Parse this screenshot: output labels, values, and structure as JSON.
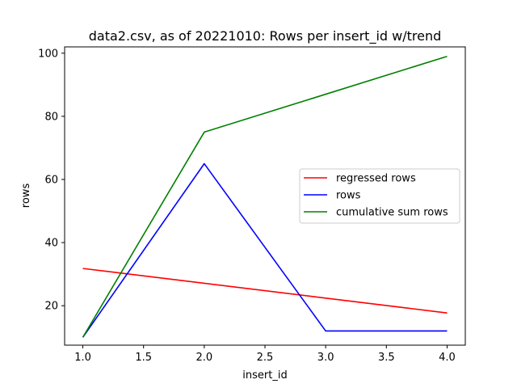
{
  "chart_data": {
    "type": "line",
    "title": "data2.csv, as of 20221010: Rows per insert_id w/trend",
    "xlabel": "insert_id",
    "ylabel": "rows",
    "x": [
      1.0,
      2.0,
      3.0,
      4.0
    ],
    "xlim": [
      0.85,
      4.15
    ],
    "ylim": [
      7.5,
      102
    ],
    "xticks": [
      1.0,
      1.5,
      2.0,
      2.5,
      3.0,
      3.5,
      4.0
    ],
    "xtick_labels": [
      "1.0",
      "1.5",
      "2.0",
      "2.5",
      "3.0",
      "3.5",
      "4.0"
    ],
    "yticks": [
      20,
      40,
      60,
      80,
      100
    ],
    "ytick_labels": [
      "20",
      "40",
      "60",
      "80",
      "100"
    ],
    "grid": false,
    "legend_position": "center-right",
    "series": [
      {
        "name": "regressed rows",
        "color": "#ff0000",
        "values": [
          31.8,
          27.1,
          22.4,
          17.7
        ]
      },
      {
        "name": "rows",
        "color": "#0000ff",
        "values": [
          10,
          65,
          12,
          12
        ]
      },
      {
        "name": "cumulative sum rows",
        "color": "#008000",
        "values": [
          10,
          75,
          87,
          99
        ]
      }
    ]
  }
}
